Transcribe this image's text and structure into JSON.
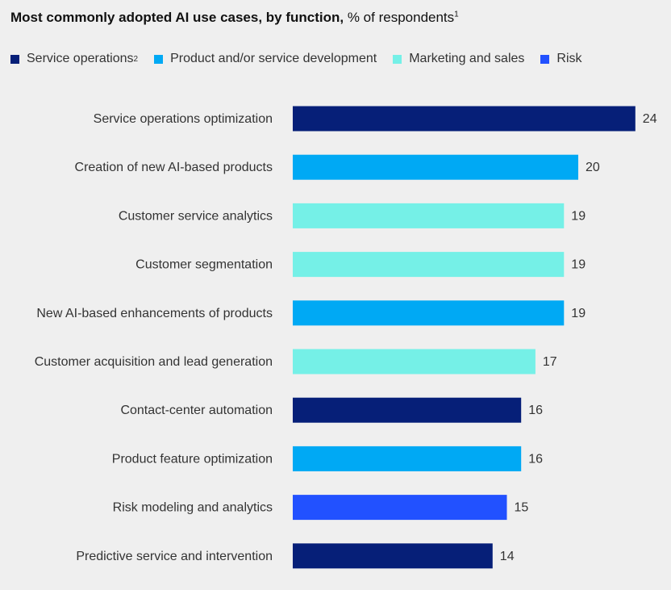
{
  "chart_data": {
    "type": "bar",
    "orientation": "horizontal",
    "title": "Most commonly adopted AI use cases, by function,",
    "subtitle": "% of respondents",
    "title_footnote": "1",
    "legend": [
      {
        "name": "Service operations",
        "footnote": "2",
        "color": "#061f78"
      },
      {
        "name": "Product and/or service development",
        "footnote": "",
        "color": "#00a9f4"
      },
      {
        "name": "Marketing and sales",
        "footnote": "",
        "color": "#75f0e7"
      },
      {
        "name": "Risk",
        "footnote": "",
        "color": "#2251ff"
      }
    ],
    "legend_position": "top-left",
    "categories": [
      "Service operations optimization",
      "Creation of new AI-based products",
      "Customer service analytics",
      "Customer segmentation",
      "New AI-based enhancements of products",
      "Customer acquisition and lead generation",
      "Contact-center automation",
      "Product feature optimization",
      "Risk modeling and analytics",
      "Predictive service and intervention"
    ],
    "values": [
      24,
      20,
      19,
      19,
      19,
      17,
      16,
      16,
      15,
      14
    ],
    "groups": [
      "Service operations",
      "Product and/or service development",
      "Marketing and sales",
      "Marketing and sales",
      "Product and/or service development",
      "Marketing and sales",
      "Service operations",
      "Product and/or service development",
      "Risk",
      "Service operations"
    ],
    "xlabel": "",
    "ylabel": "",
    "xlim": [
      0,
      24
    ],
    "grid": false
  }
}
